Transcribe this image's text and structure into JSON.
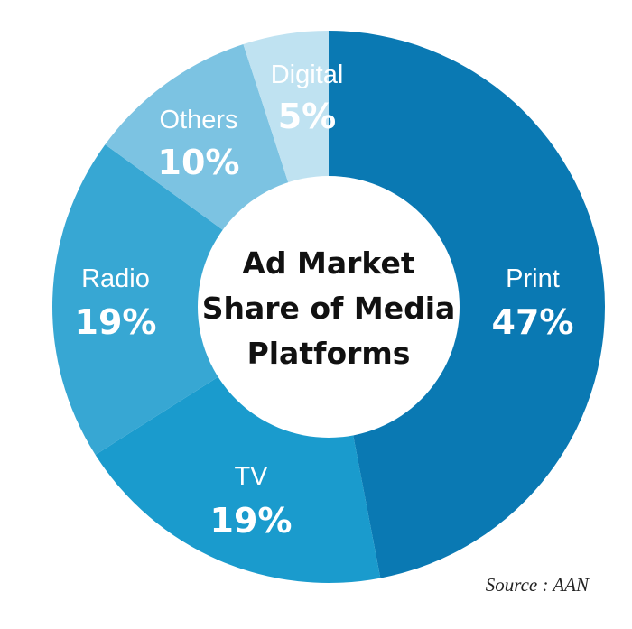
{
  "chart_data": {
    "type": "pie",
    "title_lines": [
      "Ad Market",
      "Share of Media",
      "Platforms"
    ],
    "slices": [
      {
        "label": "Print",
        "value": 47,
        "display": "47%",
        "color": "#0a79b3"
      },
      {
        "label": "TV",
        "value": 19,
        "display": "19%",
        "color": "#1a9bcd"
      },
      {
        "label": "Radio",
        "value": 19,
        "display": "19%",
        "color": "#37a7d3"
      },
      {
        "label": "Others",
        "value": 10,
        "display": "10%",
        "color": "#7cc3e2"
      },
      {
        "label": "Digital",
        "value": 5,
        "display": "5%",
        "color": "#bfe2f1"
      }
    ],
    "donut": true,
    "legend": "none"
  },
  "source": "Source : AAN"
}
